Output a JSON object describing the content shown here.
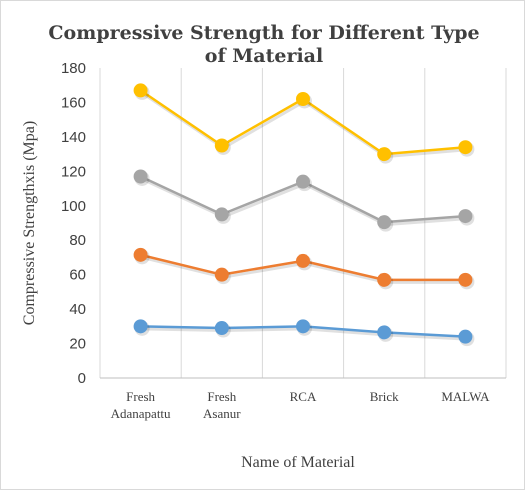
{
  "chart_data": {
    "type": "line",
    "title_lines": [
      "Compressive Strength for Different Type",
      "of Material"
    ],
    "xlabel": "Name of Material",
    "ylabel": "Compressive Strengthxis (Mpa)",
    "categories": [
      [
        "Fresh",
        "Adanapattu"
      ],
      [
        "Fresh",
        "Asanur"
      ],
      [
        "RCA"
      ],
      [
        "Brick"
      ],
      [
        "MALWA"
      ]
    ],
    "ylim": [
      0,
      180
    ],
    "yticks": [
      0,
      20,
      40,
      60,
      80,
      100,
      120,
      140,
      160,
      180
    ],
    "grid": "vertical",
    "legend": "none",
    "series": [
      {
        "color": "#5b9bd5",
        "values": [
          30,
          29,
          30,
          26.5,
          24
        ]
      },
      {
        "color": "#ed7d31",
        "values": [
          71.5,
          60,
          68,
          57,
          57
        ]
      },
      {
        "color": "#a5a5a5",
        "values": [
          117,
          95,
          114,
          90.5,
          94
        ]
      },
      {
        "color": "#ffc000",
        "values": [
          167,
          135,
          162,
          130,
          134
        ]
      }
    ]
  }
}
